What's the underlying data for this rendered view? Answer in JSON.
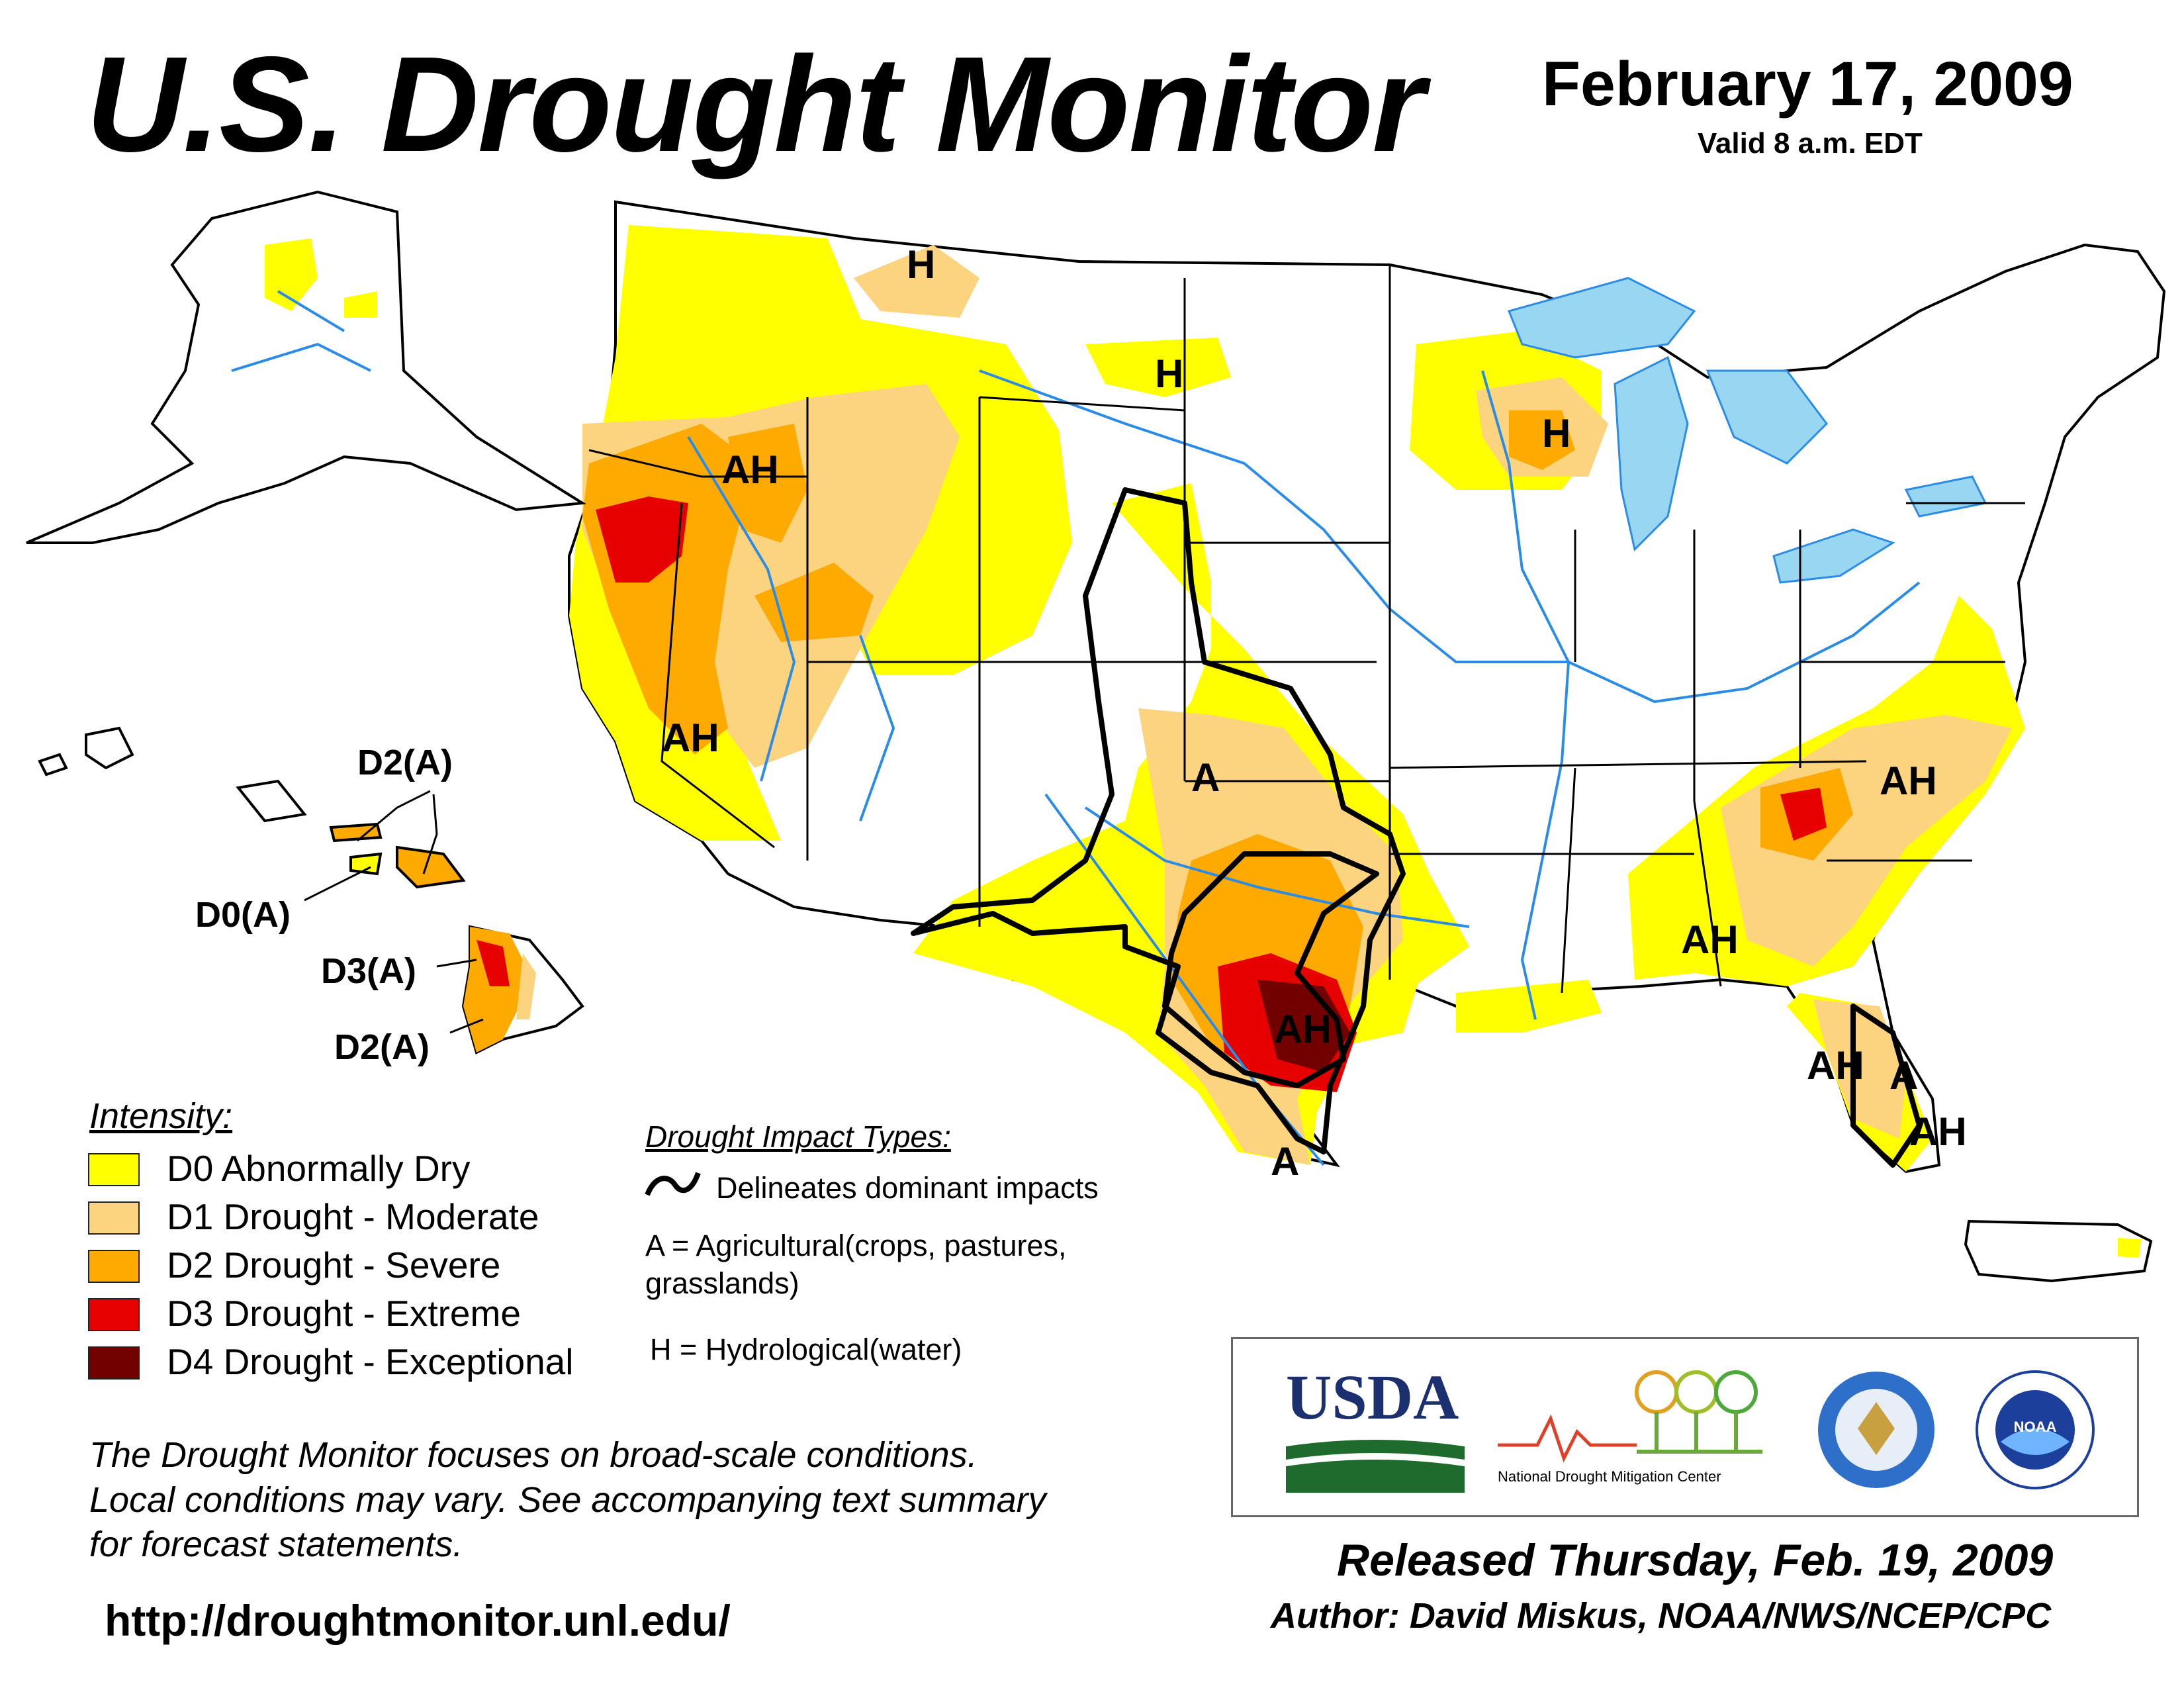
{
  "header": {
    "title": "U.S. Drought Monitor",
    "date": "February 17, 2009",
    "valid": "Valid 8 a.m. EDT"
  },
  "colors": {
    "D0": "#ffff00",
    "D1": "#fcd37f",
    "D2": "#ffaa00",
    "D3": "#e60000",
    "D4": "#730000",
    "water": "#99ccff",
    "rivers": "#2b8ce6",
    "lakes": "#99d6f2"
  },
  "map": {
    "impact_labels": [
      "H",
      "H",
      "H",
      "AH",
      "AH",
      "A",
      "AH",
      "AH",
      "AH",
      "AH",
      "A",
      "AH",
      "A"
    ],
    "hawaii_labels": [
      "D2(A)",
      "D0(A)",
      "D3(A)",
      "D2(A)"
    ]
  },
  "legend": {
    "title": "Intensity:",
    "items": [
      {
        "label": "D0 Abnormally Dry",
        "color": "#ffff00"
      },
      {
        "label": "D1 Drought - Moderate",
        "color": "#fcd37f"
      },
      {
        "label": "D2 Drought - Severe",
        "color": "#ffaa00"
      },
      {
        "label": "D3 Drought - Extreme",
        "color": "#e60000"
      },
      {
        "label": "D4 Drought - Exceptional",
        "color": "#730000"
      }
    ]
  },
  "impacts": {
    "title": "Drought Impact Types:",
    "delineates": "Delineates dominant impacts",
    "agricultural_1": "A = Agricultural(crops, pastures,",
    "agricultural_2": "grasslands)",
    "hydrological": "H = Hydrological(water)"
  },
  "note": {
    "line1": "The Drought Monitor focuses on broad-scale conditions.",
    "line2": "Local conditions may vary. See accompanying text summary",
    "line3": "for forecast statements."
  },
  "url": "http://droughtmonitor.unl.edu/",
  "logos": {
    "usda": "USDA",
    "ndmc_1": "National",
    "ndmc_2": "Drought Mitigation Center",
    "noaa": "NOAA"
  },
  "footer": {
    "released": "Released Thursday, Feb. 19, 2009",
    "author": "Author: David Miskus, NOAA/NWS/NCEP/CPC"
  }
}
